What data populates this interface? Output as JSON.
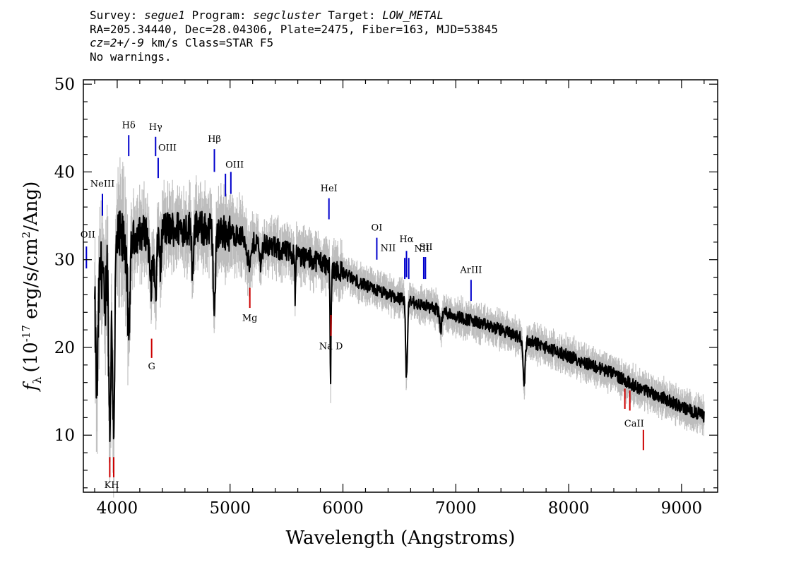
{
  "header": {
    "survey_label": "Survey:",
    "survey_value": "segue1",
    "program_label": "Program:",
    "program_value": "segcluster",
    "target_label": "Target:",
    "target_value": "LOW_METAL",
    "line2": "RA=205.34440, Dec=28.04306, Plate=2475, Fiber=163, MJD=53845",
    "cz_value": "cz=2+/-9",
    "cz_rest": " km/s Class=STAR F5",
    "line4": "No warnings."
  },
  "chart_data": {
    "type": "line",
    "xlabel": "Wavelength (Angstroms)",
    "ylabel": "f_λ (10^-17 erg/s/cm^2/Ang)",
    "ylabel_parts": {
      "f": "f",
      "lambda": "λ",
      "prefix": "(10",
      "exp": "-17",
      "mid": " erg/s/cm",
      "exp2": "2",
      "suffix": "/Ang)"
    },
    "xlim": [
      3700,
      9320
    ],
    "ylim": [
      3.5,
      50.5
    ],
    "xticks": [
      4000,
      5000,
      6000,
      7000,
      8000,
      9000
    ],
    "yticks": [
      10,
      20,
      30,
      40,
      50
    ],
    "xtick_labels": [
      "4000",
      "5000",
      "6000",
      "7000",
      "8000",
      "9000"
    ],
    "ytick_labels": [
      "10",
      "20",
      "30",
      "40",
      "50"
    ],
    "continuum": [
      [
        3800,
        26
      ],
      [
        3900,
        31
      ],
      [
        4000,
        32
      ],
      [
        4100,
        32
      ],
      [
        4200,
        33
      ],
      [
        4400,
        33.5
      ],
      [
        4600,
        33.6
      ],
      [
        4800,
        33.5
      ],
      [
        5000,
        33
      ],
      [
        5200,
        32.2
      ],
      [
        5400,
        31.3
      ],
      [
        5600,
        30.5
      ],
      [
        5800,
        29.8
      ],
      [
        6000,
        28.5
      ],
      [
        6200,
        27
      ],
      [
        6400,
        26
      ],
      [
        6600,
        25.2
      ],
      [
        6800,
        24.5
      ],
      [
        7000,
        23.6
      ],
      [
        7200,
        22.8
      ],
      [
        7400,
        22
      ],
      [
        7600,
        21
      ],
      [
        7800,
        20
      ],
      [
        8000,
        19
      ],
      [
        8200,
        18
      ],
      [
        8400,
        17
      ],
      [
        8600,
        15.5
      ],
      [
        8800,
        14.5
      ],
      [
        9000,
        13.2
      ],
      [
        9200,
        12.2
      ]
    ],
    "absorption_features": [
      [
        3820,
        12,
        10
      ],
      [
        3890,
        8,
        8
      ],
      [
        3934,
        20,
        10
      ],
      [
        3968,
        20,
        10
      ],
      [
        4102,
        12,
        10
      ],
      [
        4300,
        6,
        14
      ],
      [
        4340,
        8,
        10
      ],
      [
        4384,
        4,
        8
      ],
      [
        4668,
        5,
        6
      ],
      [
        4861,
        9,
        10
      ],
      [
        5172,
        3,
        18
      ],
      [
        5270,
        2,
        12
      ],
      [
        5577,
        5,
        3
      ],
      [
        5893,
        5,
        6
      ],
      [
        5890,
        9,
        3
      ],
      [
        6563,
        9,
        8
      ],
      [
        6867,
        2,
        10
      ],
      [
        7605,
        5,
        10
      ]
    ],
    "lines_blue": [
      {
        "name": "OII",
        "wave": 3727,
        "y1": 29.0,
        "y2": 31.5,
        "label_y": 32.5
      },
      {
        "name": "NeIII",
        "wave": 3869,
        "y1": 35.0,
        "y2": 37.5,
        "label_y": 38.3
      },
      {
        "name": "Hδ",
        "wave": 4102,
        "y1": 41.8,
        "y2": 44.2,
        "label_y": 45.0
      },
      {
        "name": "Hγ",
        "wave": 4340,
        "y1": 41.8,
        "y2": 44.0,
        "label_y": 44.8
      },
      {
        "name": "OIII",
        "wave": 4363,
        "y1": 39.3,
        "y2": 41.6,
        "label_y": 42.4
      },
      {
        "name": "Hβ",
        "wave": 4861,
        "y1": 40.0,
        "y2": 42.6,
        "label_y": 43.4
      },
      {
        "name": "OIII",
        "wave": 4959,
        "y1": 37.2,
        "y2": 39.8,
        "label_y": 40.5
      },
      {
        "name": "OIII",
        "wave": 5007,
        "y1": 37.5,
        "y2": 40.0,
        "label_y": 40.5
      },
      {
        "name": "HeI",
        "wave": 5876,
        "y1": 34.6,
        "y2": 37.0,
        "label_y": 37.8
      },
      {
        "name": "OI",
        "wave": 6300,
        "y1": 30.0,
        "y2": 32.5,
        "label_y": 33.3
      },
      {
        "name": "NII",
        "wave": 6548,
        "y1": 27.8,
        "y2": 30.2,
        "label_y": 31.0
      },
      {
        "name": "Hα",
        "wave": 6563,
        "y1": 28.0,
        "y2": 31.0,
        "label_y": 31.8
      },
      {
        "name": "NII",
        "wave": 6583,
        "y1": 27.8,
        "y2": 30.2,
        "label_y": 31.0
      },
      {
        "name": "SII",
        "wave": 6716,
        "y1": 27.8,
        "y2": 30.3,
        "label_y": 31.1
      },
      {
        "name": "SII",
        "wave": 6731,
        "y1": 27.8,
        "y2": 30.3,
        "label_y": 31.1
      },
      {
        "name": "ArIII",
        "wave": 7135,
        "y1": 25.3,
        "y2": 27.7,
        "label_y": 28.5
      }
    ],
    "lines_red": [
      {
        "name": "K",
        "wave": 3934,
        "y1": 5.2,
        "y2": 7.5,
        "label_y": 4.0
      },
      {
        "name": "H",
        "wave": 3969,
        "y1": 5.2,
        "y2": 7.5,
        "label_y": 4.0
      },
      {
        "name": "G",
        "wave": 4305,
        "y1": 18.8,
        "y2": 21.0,
        "label_y": 17.5
      },
      {
        "name": "Mg",
        "wave": 5175,
        "y1": 24.5,
        "y2": 26.8,
        "label_y": 23.0
      },
      {
        "name": "Na",
        "wave": 5894,
        "y1": 21.3,
        "y2": 23.7,
        "label_y": 19.8
      },
      {
        "name": "CaII",
        "wave": 8498,
        "y1": 13.0,
        "y2": 15.3,
        "label_y": 11.5
      },
      {
        "name": "CaII",
        "wave": 8542,
        "y1": 12.8,
        "y2": 15.1,
        "label_y": 11.5
      },
      {
        "name": "CaII",
        "wave": 8662,
        "y1": 8.3,
        "y2": 10.6,
        "label_y": 11.5
      }
    ],
    "red_labels": [
      {
        "text": "KH",
        "wave": 3951,
        "label_y": 4.0
      },
      {
        "text": "G",
        "wave": 4305,
        "label_y": 17.5
      },
      {
        "text": "Mg",
        "wave": 5175,
        "label_y": 23.0
      },
      {
        "text": "Na  D",
        "wave": 5894,
        "label_y": 19.8
      },
      {
        "text": "CaII",
        "wave": 8580,
        "label_y": 11.0
      }
    ],
    "blue_labels": [
      {
        "text": "OII",
        "wave": 3740,
        "label_y": 32.5
      },
      {
        "text": "NeIII",
        "wave": 3869,
        "label_y": 38.3
      },
      {
        "text": "Hδ",
        "wave": 4102,
        "label_y": 45.0
      },
      {
        "text": "Hγ",
        "wave": 4340,
        "label_y": 44.8
      },
      {
        "text": "OIII",
        "wave": 4445,
        "label_y": 42.4
      },
      {
        "text": "Hβ",
        "wave": 4861,
        "label_y": 43.4
      },
      {
        "text": "OIII",
        "wave": 5040,
        "label_y": 40.5
      },
      {
        "text": "HeI",
        "wave": 5876,
        "label_y": 37.8
      },
      {
        "text": "OI",
        "wave": 6300,
        "label_y": 33.3
      },
      {
        "text": "NII",
        "wave": 6400,
        "label_y": 31.0
      },
      {
        "text": "Hα",
        "wave": 6563,
        "label_y": 32.0
      },
      {
        "text": "NII",
        "wave": 6700,
        "label_y": 30.9
      },
      {
        "text": "SII",
        "wave": 6735,
        "label_y": 31.1
      },
      {
        "text": "ArIII",
        "wave": 7135,
        "label_y": 28.5
      }
    ],
    "colors": {
      "spectrum": "#000000",
      "error": "#bdbdbd",
      "emission": "#0000cc",
      "absorption": "#cc0000"
    }
  }
}
